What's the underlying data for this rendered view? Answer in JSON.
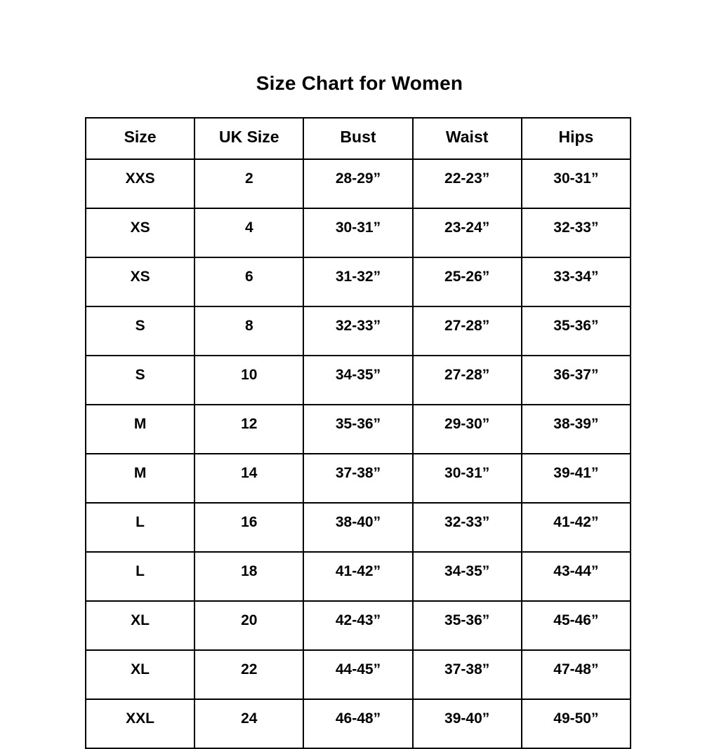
{
  "page": {
    "title": "Size Chart for Women",
    "background_color": "#ffffff",
    "text_color": "#000000",
    "border_color": "#000000"
  },
  "table": {
    "columns": [
      "Size",
      "UK Size",
      "Bust",
      "Waist",
      "Hips"
    ],
    "rows": [
      [
        "XXS",
        "2",
        "28-29”",
        "22-23”",
        "30-31”"
      ],
      [
        "XS",
        "4",
        "30-31”",
        "23-24”",
        "32-33”"
      ],
      [
        "XS",
        "6",
        "31-32”",
        "25-26”",
        "33-34”"
      ],
      [
        "S",
        "8",
        "32-33”",
        "27-28”",
        "35-36”"
      ],
      [
        "S",
        "10",
        "34-35”",
        "27-28”",
        "36-37”"
      ],
      [
        "M",
        "12",
        "35-36”",
        "29-30”",
        "38-39”"
      ],
      [
        "M",
        "14",
        "37-38”",
        "30-31”",
        "39-41”"
      ],
      [
        "L",
        "16",
        "38-40”",
        "32-33”",
        "41-42”"
      ],
      [
        "L",
        "18",
        "41-42”",
        "34-35”",
        "43-44”"
      ],
      [
        "XL",
        "20",
        "42-43”",
        "35-36”",
        "45-46”"
      ],
      [
        "XL",
        "22",
        "44-45”",
        "37-38”",
        "47-48”"
      ],
      [
        "XXL",
        "24",
        "46-48”",
        "39-40”",
        "49-50”"
      ]
    ]
  }
}
